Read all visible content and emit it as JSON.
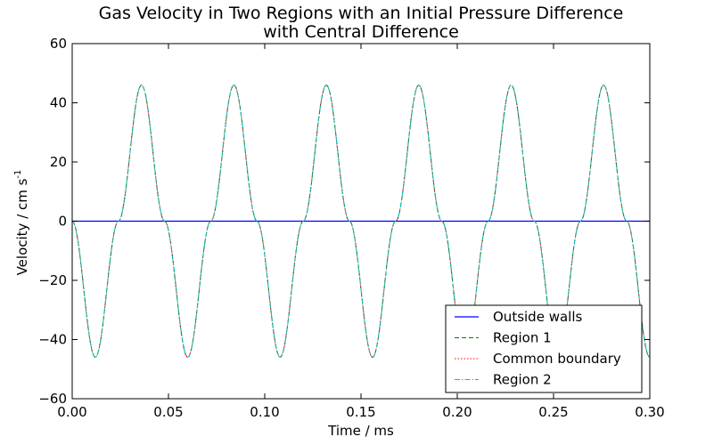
{
  "chart_data": {
    "type": "line",
    "title_line1": "Gas Velocity in Two Regions with an Initial Pressure Difference",
    "title_line2": "with Central Difference",
    "xlabel": "Time / ms",
    "ylabel_main": "Velocity / cm s",
    "ylabel_sup": "-1",
    "xlim": [
      0.0,
      0.3
    ],
    "ylim": [
      -60,
      60
    ],
    "xticks": [
      "0.00",
      "0.05",
      "0.10",
      "0.15",
      "0.20",
      "0.25",
      "0.30"
    ],
    "yticks": [
      "60",
      "40",
      "20",
      "0",
      "−20",
      "−40",
      "−60"
    ],
    "grid": false,
    "legend_position": "lower-right",
    "series": [
      {
        "name": "Outside walls",
        "color": "#0000ff",
        "style": "solid",
        "x": [
          0.0,
          0.3
        ],
        "y": [
          0,
          0
        ]
      },
      {
        "name": "Region 1",
        "color": "#008000",
        "style": "dashed",
        "x": [
          0.0,
          0.012,
          0.024,
          0.036,
          0.048,
          0.06,
          0.072,
          0.084,
          0.096,
          0.108,
          0.12,
          0.132,
          0.144,
          0.156,
          0.168,
          0.18,
          0.192,
          0.204,
          0.216,
          0.228,
          0.24,
          0.252,
          0.264,
          0.276,
          0.288,
          0.3
        ],
        "y": [
          0,
          -46,
          0,
          46,
          0,
          -46,
          0,
          46,
          0,
          -46,
          0,
          46,
          0,
          -46,
          0,
          46,
          0,
          -46,
          0,
          46,
          0,
          -46,
          0,
          46,
          0,
          -46
        ]
      },
      {
        "name": "Common boundary",
        "color": "#ff0000",
        "style": "dotted",
        "x": [
          0.0,
          0.012,
          0.024,
          0.036,
          0.048,
          0.06,
          0.072,
          0.084,
          0.096,
          0.108,
          0.12,
          0.132,
          0.144,
          0.156,
          0.168,
          0.18,
          0.192,
          0.204,
          0.216,
          0.228,
          0.24,
          0.252,
          0.264,
          0.276,
          0.288,
          0.3
        ],
        "y": [
          0,
          -46,
          0,
          46,
          0,
          -46,
          0,
          46,
          0,
          -46,
          0,
          46,
          0,
          -46,
          0,
          46,
          0,
          -46,
          0,
          46,
          0,
          -46,
          0,
          46,
          0,
          -46
        ]
      },
      {
        "name": "Region 2",
        "color": "#00bfbf",
        "style": "dashdot",
        "x": [
          0.0,
          0.012,
          0.024,
          0.036,
          0.048,
          0.06,
          0.072,
          0.084,
          0.096,
          0.108,
          0.12,
          0.132,
          0.144,
          0.156,
          0.168,
          0.18,
          0.192,
          0.204,
          0.216,
          0.228,
          0.24,
          0.252,
          0.264,
          0.276,
          0.288,
          0.3
        ],
        "y": [
          0,
          -46,
          0,
          46,
          0,
          -46,
          0,
          46,
          0,
          -46,
          0,
          46,
          0,
          -46,
          0,
          46,
          0,
          -46,
          0,
          46,
          0,
          -46,
          0,
          46,
          0,
          -46
        ]
      }
    ]
  }
}
